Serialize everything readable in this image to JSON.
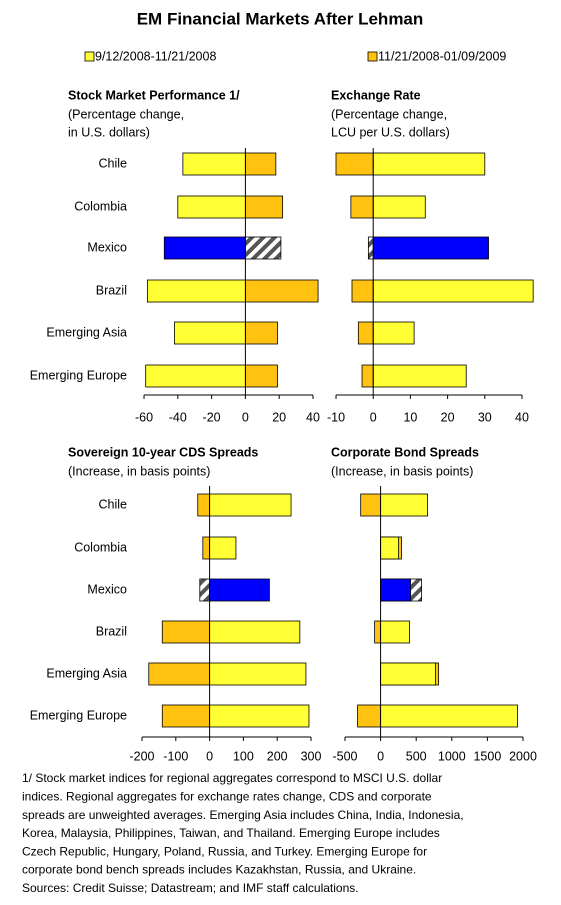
{
  "title": "EM Financial Markets After Lehman",
  "highlight_index": 2,
  "highlight_color": "#0000ff",
  "chart_data": [
    {
      "type": "bar",
      "title": "Stock Market Performance 1/",
      "subtitle": [
        "(Percentage change,",
        "in U.S. dollars)"
      ],
      "categories": [
        "Chile",
        "Colombia",
        "Mexico",
        "Brazil",
        "Emerging Asia",
        "Emerging Europe"
      ],
      "series": [
        {
          "name": "9/12/2008-11/21/2008",
          "color": "#ffff33",
          "values": [
            -37,
            -40,
            -48,
            -58,
            -42,
            -59
          ]
        },
        {
          "name": "11/21/2008-01/09/2009",
          "color": "#ffc20e",
          "values": [
            18,
            22,
            21,
            43,
            19,
            19
          ]
        }
      ],
      "xlim": [
        -60,
        40
      ],
      "xticks": [
        -60,
        -40,
        -20,
        0,
        20,
        40
      ]
    },
    {
      "type": "bar",
      "title": "Exchange Rate",
      "subtitle": [
        "(Percentage change,",
        "LCU per U.S. dollars)"
      ],
      "series": [
        {
          "values": [
            30,
            14,
            31,
            43,
            11,
            25
          ]
        },
        {
          "values": [
            -10,
            -6,
            -1.3,
            -5.7,
            -4,
            -3
          ]
        }
      ],
      "xlim": [
        -10,
        40
      ],
      "xticks": [
        -10,
        0,
        10,
        20,
        30,
        40
      ]
    },
    {
      "type": "bar",
      "title": "Sovereign 10-year CDS Spreads",
      "subtitle": [
        "(Increase, in basis points)"
      ],
      "categories": [
        "Chile",
        "Colombia",
        "Mexico",
        "Brazil",
        "Emerging Asia",
        "Emerging Europe"
      ],
      "series": [
        {
          "values": [
            241,
            78,
            177,
            267,
            285,
            294
          ]
        },
        {
          "values": [
            -35,
            -20,
            -29,
            -140,
            -180,
            -140
          ]
        }
      ],
      "xlim": [
        -200,
        300
      ],
      "xticks": [
        -200,
        -100,
        0,
        100,
        200,
        300
      ]
    },
    {
      "type": "bar",
      "title": "Corporate Bond Spreads",
      "subtitle": [
        "(Increase, in basis points)"
      ],
      "series": [
        {
          "values": [
            660,
            253,
            421,
            407,
            772,
            1924
          ]
        },
        {
          "values": [
            -280,
            295,
            576,
            -84,
            815,
            -323
          ]
        }
      ],
      "xlim": [
        -500,
        2000
      ],
      "xticks": [
        -500,
        0,
        500,
        1000,
        1500,
        2000
      ]
    }
  ],
  "notes": [
    "1/ Stock market indices for regional aggregates correspond to MSCI U.S. dollar",
    "indices. Regional aggregates for exchange rates change, CDS and corporate",
    "spreads are unweighted averages. Emerging Asia includes China, India, Indonesia,",
    "Korea, Malaysia,  Philippines, Taiwan, and Thailand. Emerging Europe includes",
    "Czech Republic, Hungary, Poland, Russia, and Turkey. Emerging Europe for",
    "corporate bond bench spreads includes Kazakhstan, Russia, and Ukraine.",
    "Sources: Credit Suisse; Datastream; and IMF staff calculations."
  ]
}
